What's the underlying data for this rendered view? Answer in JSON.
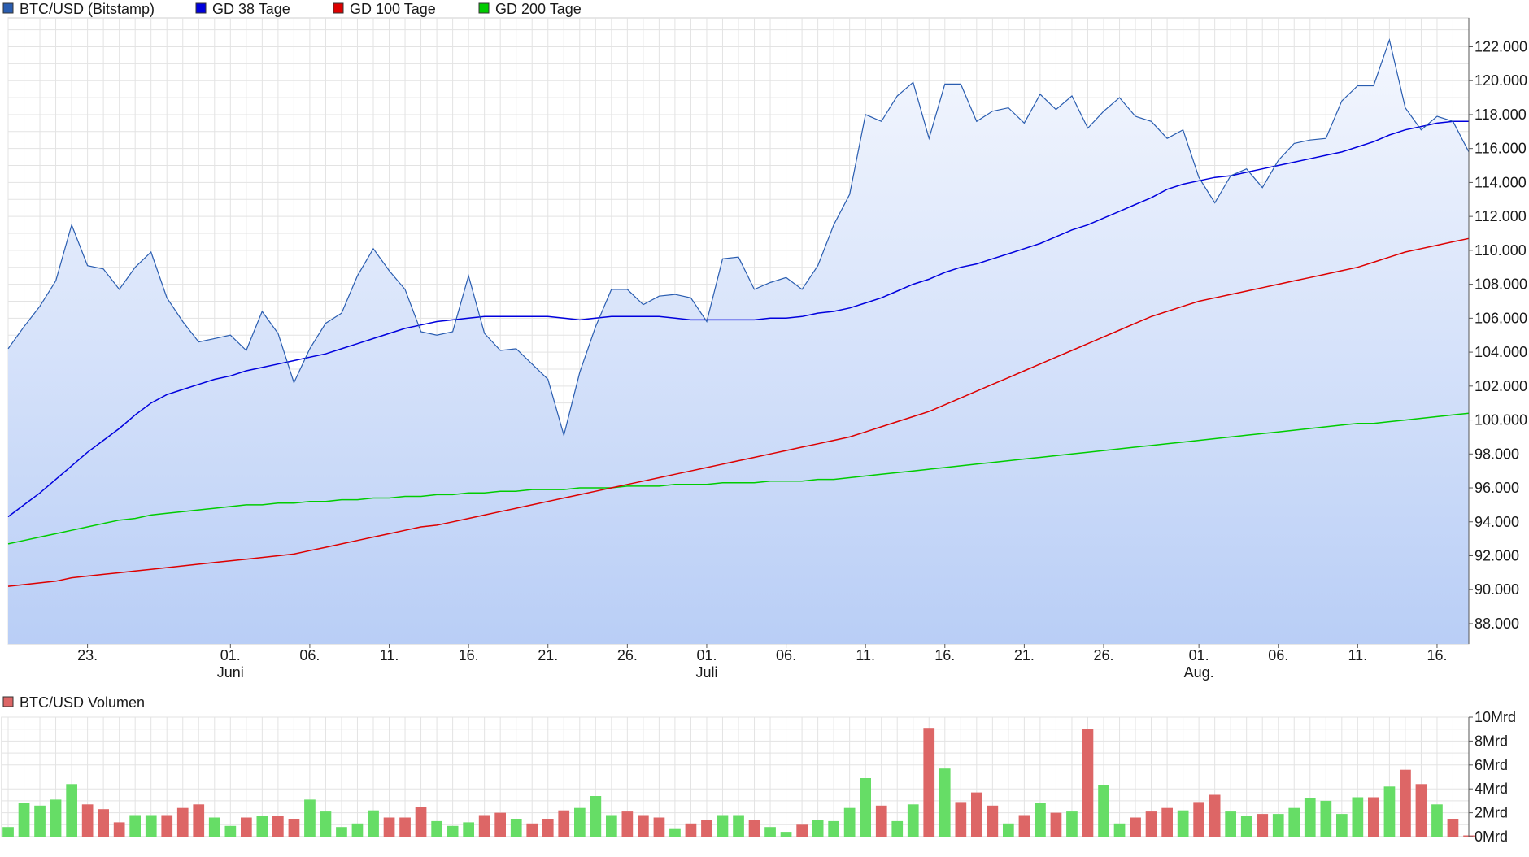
{
  "chart_data": [
    {
      "type": "line",
      "legend": [
        {
          "name": "BTC/USD (Bitstamp)",
          "color": "#2a5db0"
        },
        {
          "name": "GD 38 Tage",
          "color": "#0000dd"
        },
        {
          "name": "GD 100 Tage",
          "color": "#dd0000"
        },
        {
          "name": "GD 200 Tage",
          "color": "#00cc00"
        }
      ],
      "legend_position": "top-left",
      "grid": true,
      "ylim": [
        86800,
        123700
      ],
      "y_ticks": [
        "88.000",
        "90.000",
        "92.000",
        "94.000",
        "96.000",
        "98.000",
        "100.000",
        "102.000",
        "104.000",
        "106.000",
        "108.000",
        "110.000",
        "112.000",
        "114.000",
        "116.000",
        "118.000",
        "120.000",
        "122.000"
      ],
      "y_tick_values": [
        88000,
        90000,
        92000,
        94000,
        96000,
        98000,
        100000,
        102000,
        104000,
        106000,
        108000,
        110000,
        112000,
        114000,
        116000,
        118000,
        120000,
        122000
      ],
      "x_range": [
        "2025-05-18",
        "2025-08-18"
      ],
      "x_ticks": [
        {
          "label": "23.",
          "sub": "",
          "date": "2025-05-23"
        },
        {
          "label": "01.",
          "sub": "Juni",
          "date": "2025-06-01"
        },
        {
          "label": "06.",
          "sub": "",
          "date": "2025-06-06"
        },
        {
          "label": "11.",
          "sub": "",
          "date": "2025-06-11"
        },
        {
          "label": "16.",
          "sub": "",
          "date": "2025-06-16"
        },
        {
          "label": "21.",
          "sub": "",
          "date": "2025-06-21"
        },
        {
          "label": "26.",
          "sub": "",
          "date": "2025-06-26"
        },
        {
          "label": "01.",
          "sub": "Juli",
          "date": "2025-07-01"
        },
        {
          "label": "06.",
          "sub": "",
          "date": "2025-07-06"
        },
        {
          "label": "11.",
          "sub": "",
          "date": "2025-07-11"
        },
        {
          "label": "16.",
          "sub": "",
          "date": "2025-07-16"
        },
        {
          "label": "21.",
          "sub": "",
          "date": "2025-07-21"
        },
        {
          "label": "26.",
          "sub": "",
          "date": "2025-07-26"
        },
        {
          "label": "01.",
          "sub": "Aug.",
          "date": "2025-08-01"
        },
        {
          "label": "06.",
          "sub": "",
          "date": "2025-08-06"
        },
        {
          "label": "11.",
          "sub": "",
          "date": "2025-08-11"
        },
        {
          "label": "16.",
          "sub": "",
          "date": "2025-08-16"
        }
      ],
      "x": [
        "2025-05-18",
        "2025-05-19",
        "2025-05-20",
        "2025-05-21",
        "2025-05-22",
        "2025-05-23",
        "2025-05-24",
        "2025-05-25",
        "2025-05-26",
        "2025-05-27",
        "2025-05-28",
        "2025-05-29",
        "2025-05-30",
        "2025-05-31",
        "2025-06-01",
        "2025-06-02",
        "2025-06-03",
        "2025-06-04",
        "2025-06-05",
        "2025-06-06",
        "2025-06-07",
        "2025-06-08",
        "2025-06-09",
        "2025-06-10",
        "2025-06-11",
        "2025-06-12",
        "2025-06-13",
        "2025-06-14",
        "2025-06-15",
        "2025-06-16",
        "2025-06-17",
        "2025-06-18",
        "2025-06-19",
        "2025-06-20",
        "2025-06-21",
        "2025-06-22",
        "2025-06-23",
        "2025-06-24",
        "2025-06-25",
        "2025-06-26",
        "2025-06-27",
        "2025-06-28",
        "2025-06-29",
        "2025-06-30",
        "2025-07-01",
        "2025-07-02",
        "2025-07-03",
        "2025-07-04",
        "2025-07-05",
        "2025-07-06",
        "2025-07-07",
        "2025-07-08",
        "2025-07-09",
        "2025-07-10",
        "2025-07-11",
        "2025-07-12",
        "2025-07-13",
        "2025-07-14",
        "2025-07-15",
        "2025-07-16",
        "2025-07-17",
        "2025-07-18",
        "2025-07-19",
        "2025-07-20",
        "2025-07-21",
        "2025-07-22",
        "2025-07-23",
        "2025-07-24",
        "2025-07-25",
        "2025-07-26",
        "2025-07-27",
        "2025-07-28",
        "2025-07-29",
        "2025-07-30",
        "2025-07-31",
        "2025-08-01",
        "2025-08-02",
        "2025-08-03",
        "2025-08-04",
        "2025-08-05",
        "2025-08-06",
        "2025-08-07",
        "2025-08-08",
        "2025-08-09",
        "2025-08-10",
        "2025-08-11",
        "2025-08-12",
        "2025-08-13",
        "2025-08-14",
        "2025-08-15",
        "2025-08-16",
        "2025-08-17",
        "2025-08-18"
      ],
      "series": [
        {
          "name": "BTC/USD (Bitstamp)",
          "values": [
            104200,
            105500,
            106700,
            108200,
            111500,
            109100,
            108900,
            107700,
            109000,
            109900,
            107200,
            105800,
            104600,
            104800,
            105000,
            104100,
            106400,
            105100,
            102200,
            104200,
            105700,
            106300,
            108500,
            110100,
            108800,
            107700,
            105200,
            105000,
            105200,
            108500,
            105100,
            104100,
            104200,
            103300,
            102400,
            99100,
            102800,
            105500,
            107700,
            107700,
            106800,
            107300,
            107400,
            107200,
            105800,
            109500,
            109600,
            107700,
            108100,
            108400,
            107700,
            109100,
            111500,
            113300,
            118000,
            117600,
            119100,
            119900,
            116600,
            119800,
            119800,
            117600,
            118200,
            118400,
            117500,
            119200,
            118300,
            119100,
            117200,
            118200,
            119000,
            117900,
            117600,
            116600,
            117100,
            114300,
            112800,
            114400,
            114800,
            113700,
            115300,
            116300,
            116500,
            116600,
            118800,
            119700,
            119700,
            122400,
            118400,
            117100,
            117900,
            117600,
            115800
          ]
        },
        {
          "name": "GD 38 Tage",
          "values": [
            94300,
            95000,
            95700,
            96500,
            97300,
            98100,
            98800,
            99500,
            100300,
            101000,
            101500,
            101800,
            102100,
            102400,
            102600,
            102900,
            103100,
            103300,
            103500,
            103700,
            103900,
            104200,
            104500,
            104800,
            105100,
            105400,
            105600,
            105800,
            105900,
            106000,
            106100,
            106100,
            106100,
            106100,
            106100,
            106000,
            105900,
            106000,
            106100,
            106100,
            106100,
            106100,
            106000,
            105900,
            105900,
            105900,
            105900,
            105900,
            106000,
            106000,
            106100,
            106300,
            106400,
            106600,
            106900,
            107200,
            107600,
            108000,
            108300,
            108700,
            109000,
            109200,
            109500,
            109800,
            110100,
            110400,
            110800,
            111200,
            111500,
            111900,
            112300,
            112700,
            113100,
            113600,
            113900,
            114100,
            114300,
            114400,
            114600,
            114800,
            115000,
            115200,
            115400,
            115600,
            115800,
            116100,
            116400,
            116800,
            117100,
            117300,
            117500,
            117600,
            117600
          ]
        },
        {
          "name": "GD 100 Tage",
          "values": [
            90200,
            90300,
            90400,
            90500,
            90700,
            90800,
            90900,
            91000,
            91100,
            91200,
            91300,
            91400,
            91500,
            91600,
            91700,
            91800,
            91900,
            92000,
            92100,
            92300,
            92500,
            92700,
            92900,
            93100,
            93300,
            93500,
            93700,
            93800,
            94000,
            94200,
            94400,
            94600,
            94800,
            95000,
            95200,
            95400,
            95600,
            95800,
            96000,
            96200,
            96400,
            96600,
            96800,
            97000,
            97200,
            97400,
            97600,
            97800,
            98000,
            98200,
            98400,
            98600,
            98800,
            99000,
            99300,
            99600,
            99900,
            100200,
            100500,
            100900,
            101300,
            101700,
            102100,
            102500,
            102900,
            103300,
            103700,
            104100,
            104500,
            104900,
            105300,
            105700,
            106100,
            106400,
            106700,
            107000,
            107200,
            107400,
            107600,
            107800,
            108000,
            108200,
            108400,
            108600,
            108800,
            109000,
            109300,
            109600,
            109900,
            110100,
            110300,
            110500,
            110700
          ]
        },
        {
          "name": "GD 200 Tage",
          "values": [
            92700,
            92900,
            93100,
            93300,
            93500,
            93700,
            93900,
            94100,
            94200,
            94400,
            94500,
            94600,
            94700,
            94800,
            94900,
            95000,
            95000,
            95100,
            95100,
            95200,
            95200,
            95300,
            95300,
            95400,
            95400,
            95500,
            95500,
            95600,
            95600,
            95700,
            95700,
            95800,
            95800,
            95900,
            95900,
            95900,
            96000,
            96000,
            96000,
            96100,
            96100,
            96100,
            96200,
            96200,
            96200,
            96300,
            96300,
            96300,
            96400,
            96400,
            96400,
            96500,
            96500,
            96600,
            96700,
            96800,
            96900,
            97000,
            97100,
            97200,
            97300,
            97400,
            97500,
            97600,
            97700,
            97800,
            97900,
            98000,
            98100,
            98200,
            98300,
            98400,
            98500,
            98600,
            98700,
            98800,
            98900,
            99000,
            99100,
            99200,
            99300,
            99400,
            99500,
            99600,
            99700,
            99800,
            99800,
            99900,
            100000,
            100100,
            100200,
            100300,
            100400
          ]
        }
      ]
    },
    {
      "type": "bar",
      "legend": [
        {
          "name": "BTC/USD Volumen",
          "color": "#dd6666"
        }
      ],
      "legend_position": "top-left",
      "grid": true,
      "ylim": [
        0,
        10
      ],
      "y_ticks": [
        "0Mrd",
        "2Mrd",
        "4Mrd",
        "6Mrd",
        "8Mrd",
        "10Mrd"
      ],
      "y_tick_values": [
        0,
        2,
        4,
        6,
        8,
        10
      ],
      "up_color": "#66dd66",
      "down_color": "#dd6666",
      "values": [
        0.8,
        2.8,
        2.6,
        3.1,
        4.4,
        2.7,
        2.3,
        1.2,
        1.8,
        1.8,
        1.8,
        2.4,
        2.7,
        1.6,
        0.9,
        1.6,
        1.7,
        1.7,
        1.5,
        3.1,
        2.1,
        0.8,
        1.1,
        2.2,
        1.6,
        1.6,
        2.5,
        1.3,
        0.9,
        1.2,
        1.8,
        2.0,
        1.5,
        1.1,
        1.5,
        2.2,
        2.4,
        3.4,
        1.8,
        2.1,
        1.8,
        1.6,
        0.7,
        1.1,
        1.4,
        1.8,
        1.8,
        1.4,
        0.8,
        0.4,
        1.0,
        1.4,
        1.3,
        2.4,
        4.9,
        2.6,
        1.3,
        2.7,
        9.1,
        5.7,
        2.9,
        3.7,
        2.6,
        1.1,
        1.8,
        2.8,
        2.0,
        2.1,
        9.0,
        4.3,
        1.1,
        1.6,
        2.1,
        2.4,
        2.2,
        2.9,
        3.5,
        2.1,
        1.7,
        1.9,
        1.9,
        2.4,
        3.2,
        3.0,
        1.9,
        3.3,
        3.3,
        4.2,
        5.6,
        4.4,
        2.7,
        1.5,
        0.1
      ],
      "directions": [
        "up",
        "up",
        "up",
        "up",
        "up",
        "down",
        "down",
        "down",
        "up",
        "up",
        "down",
        "down",
        "down",
        "up",
        "up",
        "down",
        "up",
        "down",
        "down",
        "up",
        "up",
        "up",
        "up",
        "up",
        "down",
        "down",
        "down",
        "up",
        "up",
        "up",
        "down",
        "down",
        "up",
        "down",
        "down",
        "down",
        "up",
        "up",
        "up",
        "down",
        "down",
        "down",
        "up",
        "down",
        "down",
        "up",
        "up",
        "down",
        "up",
        "up",
        "down",
        "up",
        "up",
        "up",
        "up",
        "down",
        "up",
        "up",
        "down",
        "up",
        "down",
        "down",
        "down",
        "up",
        "down",
        "up",
        "down",
        "up",
        "down",
        "up",
        "up",
        "down",
        "down",
        "down",
        "up",
        "down",
        "down",
        "up",
        "up",
        "down",
        "up",
        "up",
        "up",
        "up",
        "up",
        "up",
        "down",
        "up",
        "down",
        "down",
        "up",
        "down",
        "down"
      ]
    }
  ]
}
